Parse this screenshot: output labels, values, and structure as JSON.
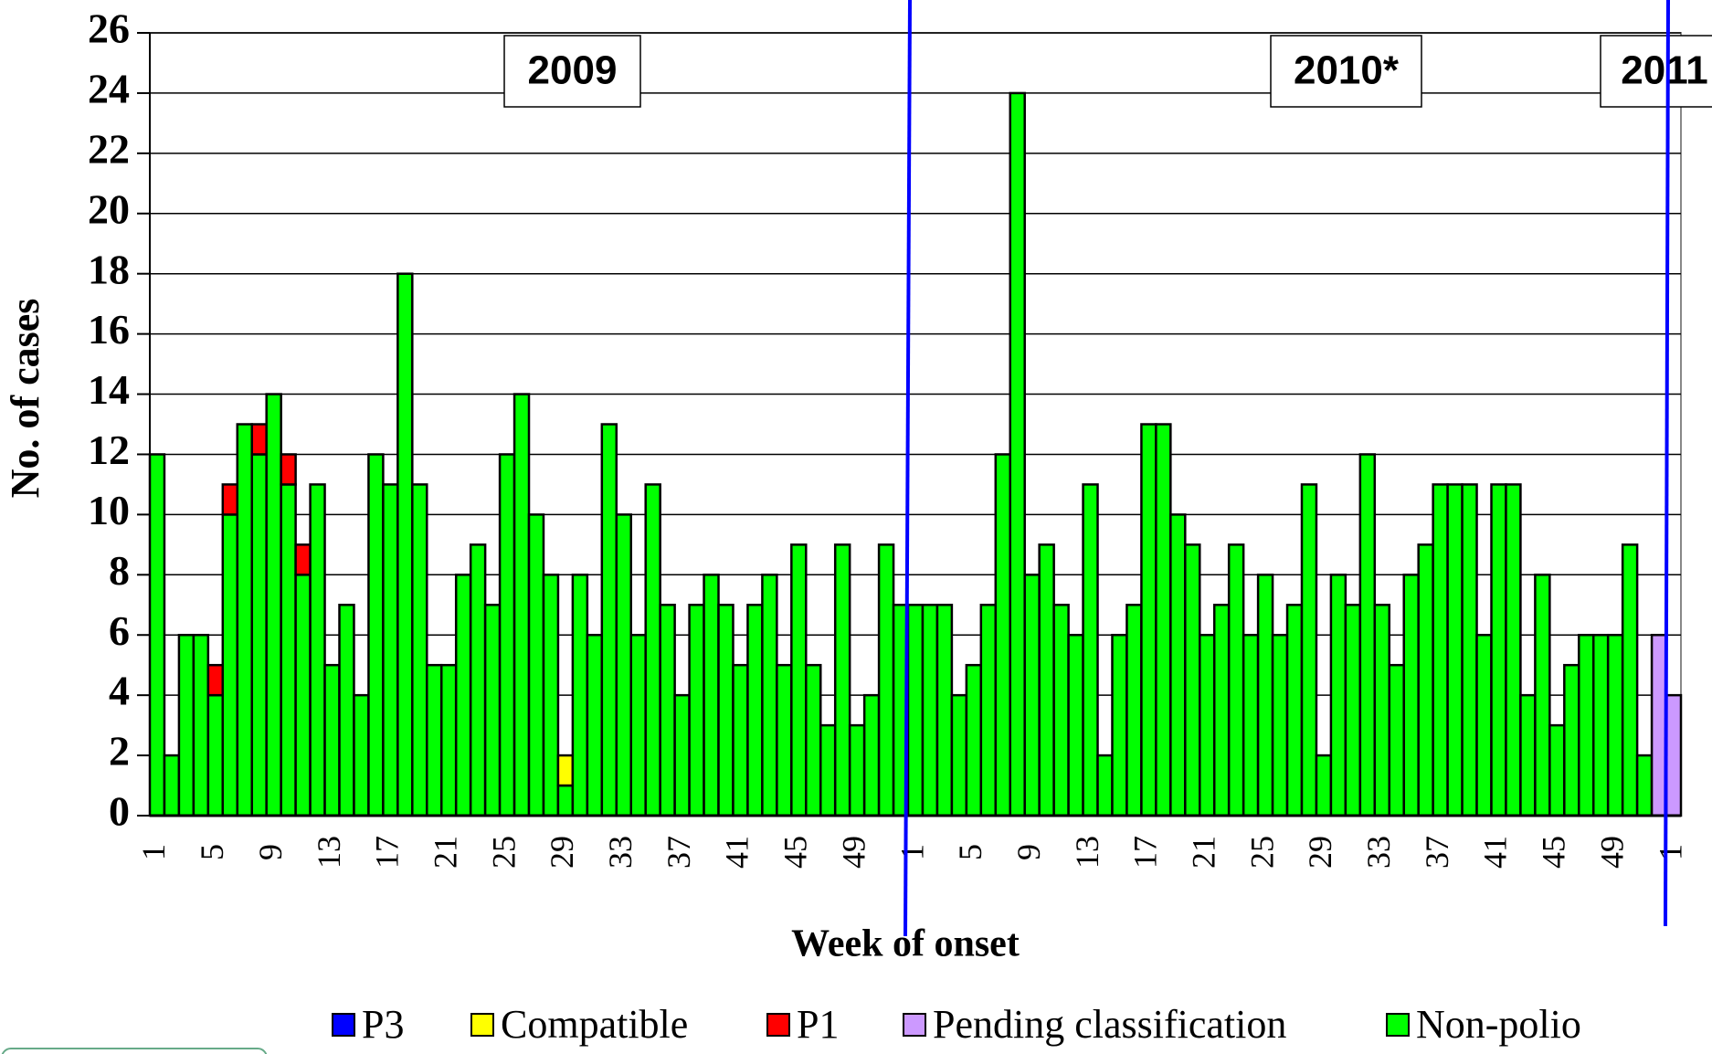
{
  "chart_data": {
    "type": "bar",
    "stacked": true,
    "y_label": "No. of cases",
    "x_label": "Week of onset",
    "year_labels": [
      "2009",
      "2010*",
      "2011"
    ],
    "categories": [
      "1",
      null,
      null,
      null,
      "5",
      null,
      null,
      null,
      "9",
      null,
      null,
      null,
      "13",
      null,
      null,
      null,
      "17",
      null,
      null,
      null,
      "21",
      null,
      null,
      null,
      "25",
      null,
      null,
      null,
      "29",
      null,
      null,
      null,
      "33",
      null,
      null,
      null,
      "37",
      null,
      null,
      null,
      "41",
      null,
      null,
      null,
      "45",
      null,
      null,
      null,
      "49",
      null,
      null,
      null,
      "1",
      null,
      null,
      null,
      "5",
      null,
      null,
      null,
      "9",
      null,
      null,
      null,
      "13",
      null,
      null,
      null,
      "17",
      null,
      null,
      null,
      "21",
      null,
      null,
      null,
      "25",
      null,
      null,
      null,
      "29",
      null,
      null,
      null,
      "33",
      null,
      null,
      null,
      "37",
      null,
      null,
      null,
      "41",
      null,
      null,
      null,
      "45",
      null,
      null,
      null,
      "49",
      null,
      null,
      null,
      "1"
    ],
    "series": [
      {
        "name": "P3",
        "color": "#0000ff",
        "values": [
          0,
          0,
          0,
          0,
          0,
          0,
          0,
          0,
          0,
          0,
          0,
          0,
          0,
          0,
          0,
          0,
          0,
          0,
          0,
          0,
          0,
          0,
          0,
          0,
          0,
          0,
          0,
          0,
          0,
          0,
          0,
          0,
          0,
          0,
          0,
          0,
          0,
          0,
          0,
          0,
          0,
          0,
          0,
          0,
          0,
          0,
          0,
          0,
          0,
          0,
          0,
          0,
          0,
          0,
          0,
          0,
          0,
          0,
          0,
          0,
          0,
          0,
          0,
          0,
          0,
          0,
          0,
          0,
          0,
          0,
          0,
          0,
          0,
          0,
          0,
          0,
          0,
          0,
          0,
          0,
          0,
          0,
          0,
          0,
          0,
          0,
          0,
          0,
          0,
          0,
          0,
          0,
          0,
          0,
          0,
          0,
          0,
          0,
          0,
          0,
          0,
          0,
          0,
          0,
          0
        ]
      },
      {
        "name": "Compatible",
        "color": "#ffff00",
        "values": [
          0,
          0,
          0,
          0,
          0,
          0,
          0,
          0,
          0,
          0,
          0,
          0,
          0,
          0,
          0,
          0,
          0,
          0,
          0,
          0,
          0,
          0,
          0,
          0,
          0,
          0,
          0,
          0,
          1,
          0,
          0,
          0,
          0,
          0,
          0,
          0,
          0,
          0,
          0,
          0,
          0,
          0,
          0,
          0,
          0,
          0,
          0,
          0,
          0,
          0,
          0,
          0,
          0,
          0,
          0,
          0,
          0,
          0,
          0,
          0,
          0,
          0,
          0,
          0,
          0,
          0,
          0,
          0,
          0,
          0,
          0,
          0,
          0,
          0,
          0,
          0,
          0,
          0,
          0,
          0,
          0,
          0,
          0,
          0,
          0,
          0,
          0,
          0,
          0,
          0,
          0,
          0,
          0,
          0,
          0,
          0,
          0,
          0,
          0,
          0,
          0,
          0,
          0,
          0,
          0
        ]
      },
      {
        "name": "P1",
        "color": "#ff0000",
        "values": [
          0,
          0,
          0,
          0,
          1,
          1,
          0,
          1,
          0,
          1,
          1,
          0,
          0,
          0,
          0,
          0,
          0,
          0,
          0,
          0,
          0,
          0,
          0,
          0,
          0,
          0,
          0,
          0,
          0,
          0,
          0,
          0,
          0,
          0,
          0,
          0,
          0,
          0,
          0,
          0,
          0,
          0,
          0,
          0,
          0,
          0,
          0,
          0,
          0,
          0,
          0,
          0,
          0,
          0,
          0,
          0,
          0,
          0,
          0,
          0,
          0,
          0,
          0,
          0,
          0,
          0,
          0,
          0,
          0,
          0,
          0,
          0,
          0,
          0,
          0,
          0,
          0,
          0,
          0,
          0,
          0,
          0,
          0,
          0,
          0,
          0,
          0,
          0,
          0,
          0,
          0,
          0,
          0,
          0,
          0,
          0,
          0,
          0,
          0,
          0,
          0,
          0,
          0,
          0,
          0
        ]
      },
      {
        "name": "Pending classification",
        "color": "#cc99ff",
        "values": [
          0,
          0,
          0,
          0,
          0,
          0,
          0,
          0,
          0,
          0,
          0,
          0,
          0,
          0,
          0,
          0,
          0,
          0,
          0,
          0,
          0,
          0,
          0,
          0,
          0,
          0,
          0,
          0,
          0,
          0,
          0,
          0,
          0,
          0,
          0,
          0,
          0,
          0,
          0,
          0,
          0,
          0,
          0,
          0,
          0,
          0,
          0,
          0,
          0,
          0,
          0,
          0,
          0,
          0,
          0,
          0,
          0,
          0,
          0,
          0,
          0,
          0,
          0,
          0,
          0,
          0,
          0,
          0,
          0,
          0,
          0,
          0,
          0,
          0,
          0,
          0,
          0,
          0,
          0,
          0,
          0,
          0,
          0,
          0,
          0,
          0,
          0,
          0,
          0,
          0,
          0,
          0,
          0,
          0,
          0,
          0,
          0,
          0,
          0,
          0,
          0,
          0,
          0,
          6,
          4
        ]
      },
      {
        "name": "Non-polio",
        "color": "#00ff00",
        "values": [
          12,
          2,
          6,
          6,
          4,
          10,
          13,
          12,
          14,
          11,
          8,
          11,
          5,
          7,
          4,
          12,
          11,
          18,
          11,
          5,
          5,
          8,
          9,
          7,
          12,
          14,
          10,
          8,
          1,
          8,
          6,
          13,
          10,
          6,
          11,
          7,
          4,
          7,
          8,
          7,
          5,
          7,
          8,
          5,
          9,
          5,
          3,
          9,
          3,
          4,
          9,
          7,
          7,
          7,
          7,
          4,
          5,
          7,
          12,
          24,
          8,
          9,
          7,
          6,
          11,
          2,
          6,
          7,
          13,
          13,
          10,
          9,
          6,
          7,
          9,
          6,
          8,
          6,
          7,
          11,
          2,
          8,
          7,
          12,
          7,
          5,
          8,
          9,
          11,
          11,
          11,
          6,
          11,
          11,
          4,
          8,
          3,
          5,
          6,
          6,
          6,
          9,
          2,
          0,
          0
        ]
      }
    ],
    "ylim": [
      0,
      26
    ],
    "yticks": [
      0,
      2,
      4,
      6,
      8,
      10,
      12,
      14,
      16,
      18,
      20,
      22,
      24,
      26
    ],
    "grid": true,
    "legend": "bottom"
  }
}
